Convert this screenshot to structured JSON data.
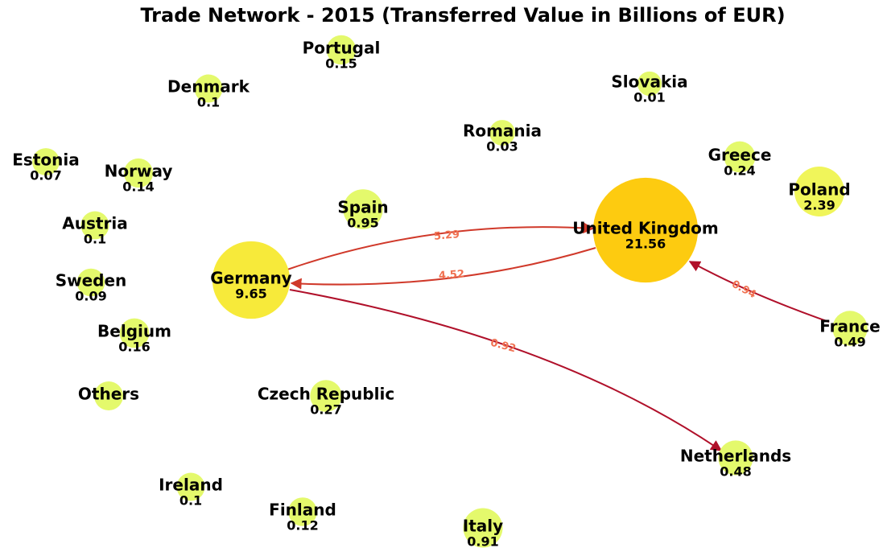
{
  "title": "Trade Network - 2015 (Transferred Value in Billions of EUR)",
  "nodes": [
    {
      "label": "Portugal",
      "value": 0.15
    },
    {
      "label": "Denmark",
      "value": 0.1
    },
    {
      "label": "Slovakia",
      "value": 0.01
    },
    {
      "label": "Romania",
      "value": 0.03
    },
    {
      "label": "Estonia",
      "value": 0.07
    },
    {
      "label": "Norway",
      "value": 0.14
    },
    {
      "label": "Greece",
      "value": 0.24
    },
    {
      "label": "Poland",
      "value": 2.39
    },
    {
      "label": "Spain",
      "value": 0.95
    },
    {
      "label": "United Kingdom",
      "value": 21.56
    },
    {
      "label": "Austria",
      "value": 0.1
    },
    {
      "label": "Germany",
      "value": 9.65
    },
    {
      "label": "Sweden",
      "value": 0.09
    },
    {
      "label": "France",
      "value": 0.49
    },
    {
      "label": "Belgium",
      "value": 0.16
    },
    {
      "label": "Others"
    },
    {
      "label": "Czech Republic",
      "value": 0.27
    },
    {
      "label": "Netherlands",
      "value": 0.48
    },
    {
      "label": "Ireland",
      "value": 0.1
    },
    {
      "label": "Finland",
      "value": 0.12
    },
    {
      "label": "Italy",
      "value": 0.91
    }
  ],
  "edges": [
    {
      "from": "Germany",
      "to": "United Kingdom",
      "value": 5.29
    },
    {
      "from": "United Kingdom",
      "to": "Germany",
      "value": 4.52
    },
    {
      "from": "Germany",
      "to": "Netherlands",
      "value": 0.92
    },
    {
      "from": "France",
      "to": "United Kingdom",
      "value": 0.94
    }
  ]
}
